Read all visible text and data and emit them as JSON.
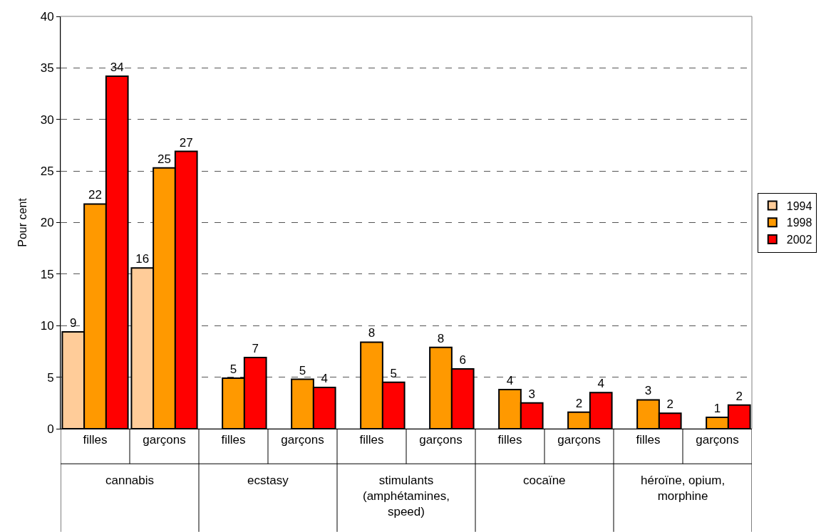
{
  "chart_data": {
    "type": "bar",
    "ylabel": "Pour cent",
    "categories": [
      "filles",
      "garçons",
      "filles",
      "garçons",
      "filles",
      "garçons",
      "filles",
      "garçons",
      "filles",
      "garçons"
    ],
    "series": [
      {
        "name": "1994",
        "color": "#ffcc99",
        "values": [
          9.4,
          15.6,
          null,
          null,
          null,
          null,
          null,
          null,
          null,
          null
        ],
        "value_labels": [
          "9",
          "16",
          null,
          null,
          null,
          null,
          null,
          null,
          null,
          null
        ]
      },
      {
        "name": "1998",
        "color": "#ff9900",
        "values": [
          21.8,
          25.3,
          4.9,
          4.8,
          8.4,
          7.9,
          3.8,
          1.6,
          2.8,
          1.1
        ],
        "value_labels": [
          "22",
          "25",
          "5",
          "5",
          "8",
          "8",
          "4",
          "2",
          "3",
          "1"
        ]
      },
      {
        "name": "2002",
        "color": "#ff0000",
        "values": [
          34.2,
          26.9,
          6.9,
          4.0,
          4.5,
          5.8,
          2.5,
          3.5,
          1.5,
          2.3
        ],
        "value_labels": [
          "34",
          "27",
          "7",
          "4",
          "5",
          "6",
          "3",
          "4",
          "2",
          "2"
        ]
      }
    ],
    "annotations": [
      "cannabis",
      "ecstasy",
      "stimulants\n(amphétamines,\nspeed)",
      "cocaïne",
      "héroïne, opium,\nmorphine"
    ],
    "ylim": [
      0,
      40
    ],
    "yticks": [
      0,
      5,
      10,
      15,
      20,
      25,
      30,
      35,
      40
    ],
    "grid": "y",
    "legend": "right"
  }
}
